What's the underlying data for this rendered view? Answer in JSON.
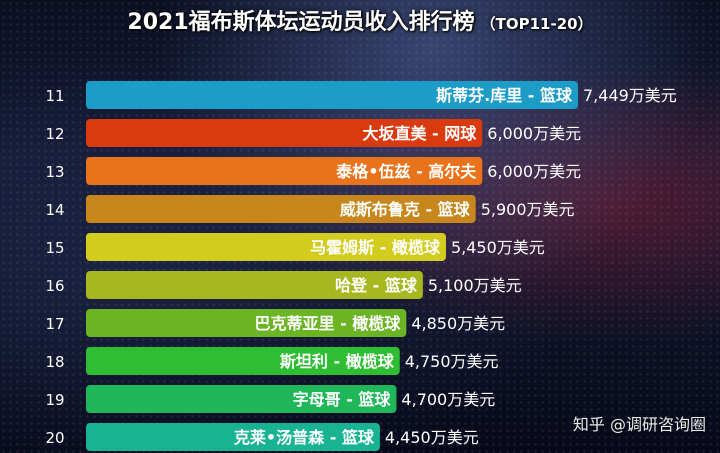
{
  "header": {
    "title": "2021福布斯体坛运动员收入排行榜",
    "subtitle": "（TOP11-20）"
  },
  "watermark": "知乎 @调研咨询圈",
  "chart_data": {
    "type": "bar",
    "orientation": "horizontal",
    "title": "2021福布斯体坛运动员收入排行榜",
    "subtitle": "（TOP11-20）",
    "unit": "万美元",
    "ranks": [
      "11",
      "12",
      "13",
      "14",
      "15",
      "16",
      "17",
      "18",
      "19",
      "20"
    ],
    "categories": [
      "斯蒂芬.库里 - 篮球",
      "大坂直美 - 网球",
      "泰格•伍兹 - 高尔夫",
      "威斯布鲁克 - 篮球",
      "马霍姆斯 - 橄榄球",
      "哈登 - 篮球",
      "巴克蒂亚里 - 橄榄球",
      "斯坦利 - 橄榄球",
      "字母哥 - 篮球",
      "克莱•汤普森 - 篮球"
    ],
    "values": [
      7449,
      6000,
      6000,
      5900,
      5450,
      5100,
      4850,
      4750,
      4700,
      4450
    ],
    "value_labels": [
      "7,449万美元",
      "6,000万美元",
      "6,000万美元",
      "5,900万美元",
      "5,450万美元",
      "5,100万美元",
      "4,850万美元",
      "4,750万美元",
      "4,700万美元",
      "4,450万美元"
    ],
    "colors": [
      "#1e9cc8",
      "#d93a10",
      "#e9731a",
      "#c7871c",
      "#d2cc1e",
      "#a6b71f",
      "#6bb525",
      "#2fbd33",
      "#20b65a",
      "#17b393"
    ],
    "xlim": [
      0,
      7449
    ],
    "grid": false,
    "legend": "none"
  }
}
